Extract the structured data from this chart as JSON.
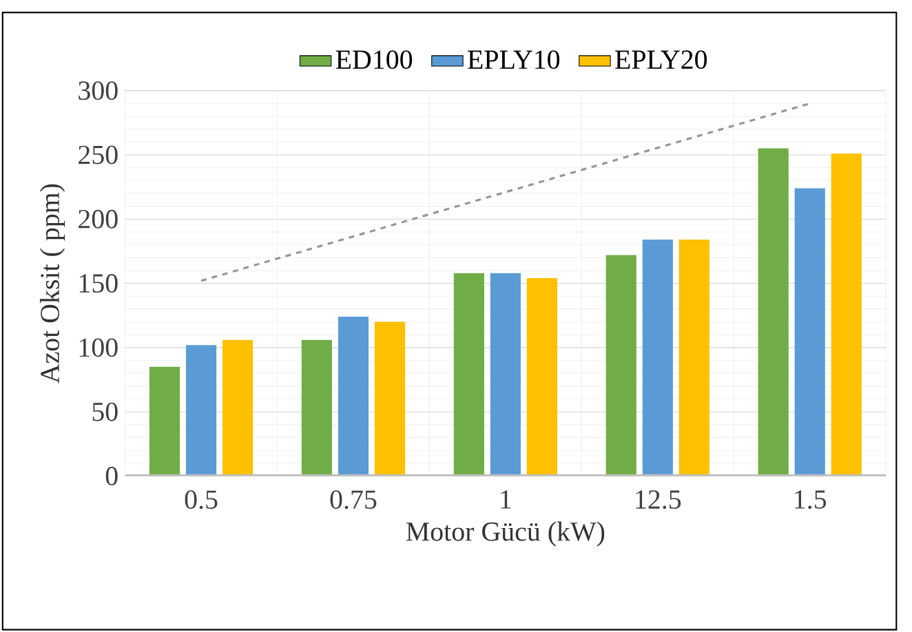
{
  "chart_data": {
    "type": "bar",
    "xlabel": "Motor Gücü (kW)",
    "ylabel": "Azot Oksit ( ppm)",
    "categories": [
      "0.5",
      "0.75",
      "1",
      "12.5",
      "1.5"
    ],
    "series": [
      {
        "name": "ED100",
        "color": "#70ad47",
        "values": [
          85,
          106,
          158,
          172,
          255
        ]
      },
      {
        "name": "EPLY10",
        "color": "#5b9bd5",
        "values": [
          102,
          124,
          158,
          184,
          224
        ]
      },
      {
        "name": "EPLY20",
        "color": "#ffc000",
        "values": [
          106,
          120,
          154,
          184,
          251
        ]
      },
      {
        "type": "line",
        "color": "#969696",
        "line_style": "dashed",
        "x": [
          "0.5",
          "1.5"
        ],
        "values": [
          152,
          290
        ]
      }
    ],
    "ylim": [
      0,
      300
    ],
    "yticks": [
      0,
      50,
      100,
      150,
      200,
      250,
      300
    ],
    "grid": true,
    "legend": "top"
  }
}
